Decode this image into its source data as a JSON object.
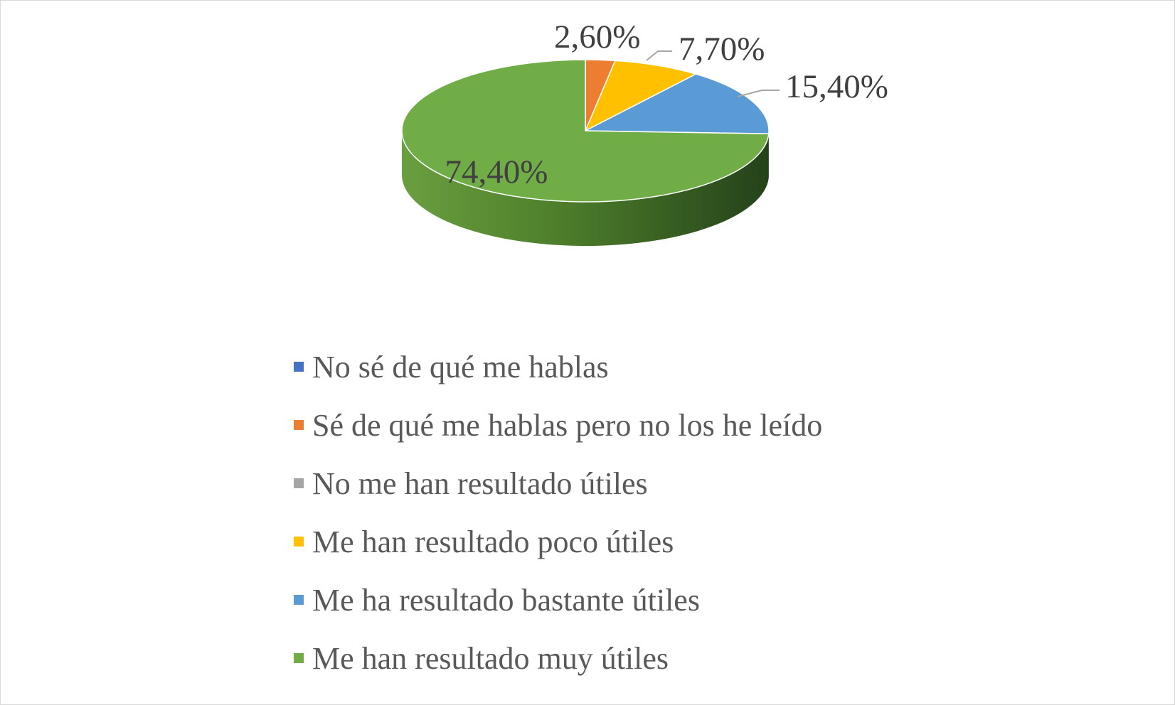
{
  "chart_data": {
    "type": "pie",
    "style": "3d",
    "title": "",
    "start_angle": "12 o'clock, clockwise",
    "slices": [
      {
        "label": "No sé de qué me hablas",
        "value": 0,
        "value_label": "",
        "color": "#4472C4"
      },
      {
        "label": "Sé de qué me hablas pero no los he leído",
        "value": 2.6,
        "value_label": "2,60%",
        "color": "#ED7D31"
      },
      {
        "label": "No me han resultado útiles",
        "value": 0,
        "value_label": "",
        "color": "#A5A5A5"
      },
      {
        "label": "Me han resultado poco útiles",
        "value": 7.7,
        "value_label": "7,70%",
        "color": "#FFC000"
      },
      {
        "label": "Me ha resultado bastante útiles",
        "value": 15.4,
        "value_label": "15,40%",
        "color": "#5B9BD5"
      },
      {
        "label": "Me han resultado muy útiles",
        "value": 74.4,
        "value_label": "74,40%",
        "color": "#70AD47"
      }
    ],
    "legend": {
      "position": "bottom"
    }
  }
}
